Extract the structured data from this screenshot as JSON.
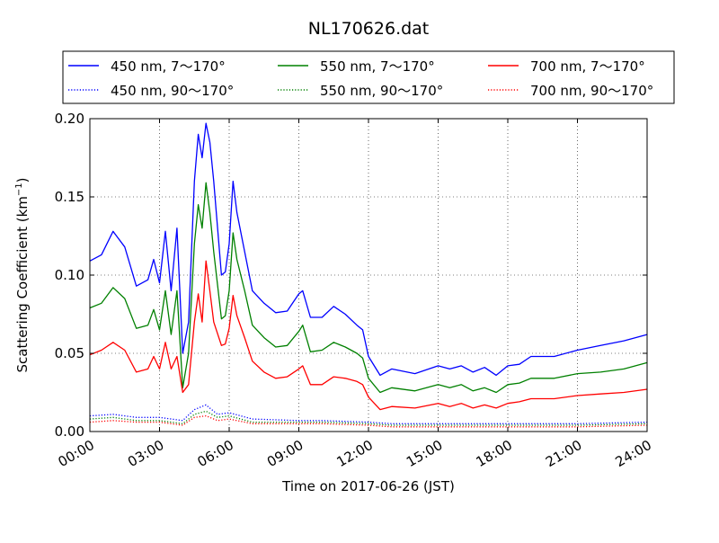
{
  "chart_data": {
    "type": "line",
    "title": "NL170626.dat",
    "xlabel": "Time on 2017-06-26 (JST)",
    "ylabel": "Scattering Coefficient (km",
    "ylabel_sup": "−1",
    "ylabel_close": ")",
    "xlim": [
      "00:00",
      "24:00"
    ],
    "ylim": [
      0,
      0.2
    ],
    "grid": true,
    "legend_position": "top",
    "x_ticks": [
      "00:00",
      "03:00",
      "06:00",
      "09:00",
      "12:00",
      "15:00",
      "18:00",
      "21:00",
      "24:00"
    ],
    "y_ticks": [
      "0.00",
      "0.05",
      "0.10",
      "0.15",
      "0.20"
    ],
    "series": [
      {
        "name": "450 nm, 7～170°",
        "color": "#0000ff",
        "style": "solid",
        "points": [
          [
            "00:00",
            0.109
          ],
          [
            "00:30",
            0.113
          ],
          [
            "01:00",
            0.128
          ],
          [
            "01:30",
            0.118
          ],
          [
            "02:00",
            0.093
          ],
          [
            "02:30",
            0.097
          ],
          [
            "02:45",
            0.11
          ],
          [
            "03:00",
            0.095
          ],
          [
            "03:15",
            0.128
          ],
          [
            "03:30",
            0.09
          ],
          [
            "03:45",
            0.13
          ],
          [
            "04:00",
            0.05
          ],
          [
            "04:15",
            0.07
          ],
          [
            "04:30",
            0.16
          ],
          [
            "04:40",
            0.19
          ],
          [
            "04:50",
            0.175
          ],
          [
            "05:00",
            0.197
          ],
          [
            "05:10",
            0.185
          ],
          [
            "05:20",
            0.16
          ],
          [
            "05:40",
            0.1
          ],
          [
            "05:50",
            0.102
          ],
          [
            "06:00",
            0.12
          ],
          [
            "06:10",
            0.16
          ],
          [
            "06:20",
            0.14
          ],
          [
            "06:40",
            0.115
          ],
          [
            "07:00",
            0.09
          ],
          [
            "07:30",
            0.082
          ],
          [
            "08:00",
            0.076
          ],
          [
            "08:30",
            0.077
          ],
          [
            "09:00",
            0.088
          ],
          [
            "09:10",
            0.09
          ],
          [
            "09:30",
            0.073
          ],
          [
            "10:00",
            0.073
          ],
          [
            "10:30",
            0.08
          ],
          [
            "11:00",
            0.075
          ],
          [
            "11:30",
            0.068
          ],
          [
            "11:45",
            0.065
          ],
          [
            "12:00",
            0.048
          ],
          [
            "12:30",
            0.036
          ],
          [
            "13:00",
            0.04
          ],
          [
            "14:00",
            0.037
          ],
          [
            "15:00",
            0.042
          ],
          [
            "15:30",
            0.04
          ],
          [
            "16:00",
            0.042
          ],
          [
            "16:30",
            0.038
          ],
          [
            "17:00",
            0.041
          ],
          [
            "17:30",
            0.036
          ],
          [
            "18:00",
            0.042
          ],
          [
            "18:30",
            0.043
          ],
          [
            "19:00",
            0.048
          ],
          [
            "20:00",
            0.048
          ],
          [
            "21:00",
            0.052
          ],
          [
            "22:00",
            0.055
          ],
          [
            "23:00",
            0.058
          ],
          [
            "24:00",
            0.062
          ]
        ]
      },
      {
        "name": "550 nm, 7～170°",
        "color": "#008000",
        "style": "solid",
        "points": [
          [
            "00:00",
            0.079
          ],
          [
            "00:30",
            0.082
          ],
          [
            "01:00",
            0.092
          ],
          [
            "01:30",
            0.085
          ],
          [
            "02:00",
            0.066
          ],
          [
            "02:30",
            0.068
          ],
          [
            "02:45",
            0.078
          ],
          [
            "03:00",
            0.065
          ],
          [
            "03:15",
            0.09
          ],
          [
            "03:30",
            0.062
          ],
          [
            "03:45",
            0.09
          ],
          [
            "04:00",
            0.028
          ],
          [
            "04:15",
            0.05
          ],
          [
            "04:30",
            0.12
          ],
          [
            "04:40",
            0.145
          ],
          [
            "04:50",
            0.13
          ],
          [
            "05:00",
            0.159
          ],
          [
            "05:10",
            0.14
          ],
          [
            "05:20",
            0.115
          ],
          [
            "05:40",
            0.072
          ],
          [
            "05:50",
            0.074
          ],
          [
            "06:00",
            0.09
          ],
          [
            "06:10",
            0.127
          ],
          [
            "06:20",
            0.11
          ],
          [
            "06:40",
            0.09
          ],
          [
            "07:00",
            0.068
          ],
          [
            "07:30",
            0.06
          ],
          [
            "08:00",
            0.054
          ],
          [
            "08:30",
            0.055
          ],
          [
            "09:00",
            0.064
          ],
          [
            "09:10",
            0.068
          ],
          [
            "09:30",
            0.051
          ],
          [
            "10:00",
            0.052
          ],
          [
            "10:30",
            0.057
          ],
          [
            "11:00",
            0.054
          ],
          [
            "11:30",
            0.05
          ],
          [
            "11:45",
            0.047
          ],
          [
            "12:00",
            0.034
          ],
          [
            "12:30",
            0.025
          ],
          [
            "13:00",
            0.028
          ],
          [
            "14:00",
            0.026
          ],
          [
            "15:00",
            0.03
          ],
          [
            "15:30",
            0.028
          ],
          [
            "16:00",
            0.03
          ],
          [
            "16:30",
            0.026
          ],
          [
            "17:00",
            0.028
          ],
          [
            "17:30",
            0.025
          ],
          [
            "18:00",
            0.03
          ],
          [
            "18:30",
            0.031
          ],
          [
            "19:00",
            0.034
          ],
          [
            "20:00",
            0.034
          ],
          [
            "21:00",
            0.037
          ],
          [
            "22:00",
            0.038
          ],
          [
            "23:00",
            0.04
          ],
          [
            "24:00",
            0.044
          ]
        ]
      },
      {
        "name": "700 nm, 7～170°",
        "color": "#ff0000",
        "style": "solid",
        "points": [
          [
            "00:00",
            0.049
          ],
          [
            "00:30",
            0.052
          ],
          [
            "01:00",
            0.057
          ],
          [
            "01:30",
            0.052
          ],
          [
            "02:00",
            0.038
          ],
          [
            "02:30",
            0.04
          ],
          [
            "02:45",
            0.048
          ],
          [
            "03:00",
            0.04
          ],
          [
            "03:15",
            0.057
          ],
          [
            "03:30",
            0.04
          ],
          [
            "03:45",
            0.048
          ],
          [
            "04:00",
            0.025
          ],
          [
            "04:15",
            0.03
          ],
          [
            "04:30",
            0.07
          ],
          [
            "04:40",
            0.088
          ],
          [
            "04:50",
            0.07
          ],
          [
            "05:00",
            0.109
          ],
          [
            "05:10",
            0.09
          ],
          [
            "05:20",
            0.07
          ],
          [
            "05:40",
            0.055
          ],
          [
            "05:50",
            0.056
          ],
          [
            "06:00",
            0.066
          ],
          [
            "06:10",
            0.087
          ],
          [
            "06:20",
            0.074
          ],
          [
            "06:40",
            0.06
          ],
          [
            "07:00",
            0.045
          ],
          [
            "07:30",
            0.038
          ],
          [
            "08:00",
            0.034
          ],
          [
            "08:30",
            0.035
          ],
          [
            "09:00",
            0.04
          ],
          [
            "09:10",
            0.042
          ],
          [
            "09:30",
            0.03
          ],
          [
            "10:00",
            0.03
          ],
          [
            "10:30",
            0.035
          ],
          [
            "11:00",
            0.034
          ],
          [
            "11:30",
            0.032
          ],
          [
            "11:45",
            0.03
          ],
          [
            "12:00",
            0.022
          ],
          [
            "12:30",
            0.014
          ],
          [
            "13:00",
            0.016
          ],
          [
            "14:00",
            0.015
          ],
          [
            "15:00",
            0.018
          ],
          [
            "15:30",
            0.016
          ],
          [
            "16:00",
            0.018
          ],
          [
            "16:30",
            0.015
          ],
          [
            "17:00",
            0.017
          ],
          [
            "17:30",
            0.015
          ],
          [
            "18:00",
            0.018
          ],
          [
            "18:30",
            0.019
          ],
          [
            "19:00",
            0.021
          ],
          [
            "20:00",
            0.021
          ],
          [
            "21:00",
            0.023
          ],
          [
            "22:00",
            0.024
          ],
          [
            "23:00",
            0.025
          ],
          [
            "24:00",
            0.027
          ]
        ]
      },
      {
        "name": "450 nm, 90～170°",
        "color": "#0000ff",
        "style": "dotted",
        "points": [
          [
            "00:00",
            0.01
          ],
          [
            "01:00",
            0.011
          ],
          [
            "02:00",
            0.009
          ],
          [
            "03:00",
            0.009
          ],
          [
            "04:00",
            0.007
          ],
          [
            "04:30",
            0.014
          ],
          [
            "05:00",
            0.017
          ],
          [
            "05:30",
            0.011
          ],
          [
            "06:00",
            0.012
          ],
          [
            "07:00",
            0.008
          ],
          [
            "09:00",
            0.007
          ],
          [
            "10:00",
            0.007
          ],
          [
            "12:00",
            0.006
          ],
          [
            "13:00",
            0.005
          ],
          [
            "15:00",
            0.005
          ],
          [
            "18:00",
            0.005
          ],
          [
            "21:00",
            0.005
          ],
          [
            "24:00",
            0.006
          ]
        ]
      },
      {
        "name": "550 nm, 90～170°",
        "color": "#008000",
        "style": "dotted",
        "points": [
          [
            "00:00",
            0.008
          ],
          [
            "01:00",
            0.009
          ],
          [
            "02:00",
            0.007
          ],
          [
            "03:00",
            0.007
          ],
          [
            "04:00",
            0.005
          ],
          [
            "04:30",
            0.011
          ],
          [
            "05:00",
            0.013
          ],
          [
            "05:30",
            0.009
          ],
          [
            "06:00",
            0.01
          ],
          [
            "07:00",
            0.006
          ],
          [
            "09:00",
            0.006
          ],
          [
            "10:00",
            0.006
          ],
          [
            "12:00",
            0.005
          ],
          [
            "13:00",
            0.004
          ],
          [
            "15:00",
            0.004
          ],
          [
            "18:00",
            0.004
          ],
          [
            "21:00",
            0.004
          ],
          [
            "24:00",
            0.005
          ]
        ]
      },
      {
        "name": "700 nm, 90～170°",
        "color": "#ff0000",
        "style": "dotted",
        "points": [
          [
            "00:00",
            0.006
          ],
          [
            "01:00",
            0.007
          ],
          [
            "02:00",
            0.006
          ],
          [
            "03:00",
            0.006
          ],
          [
            "04:00",
            0.004
          ],
          [
            "04:30",
            0.009
          ],
          [
            "05:00",
            0.01
          ],
          [
            "05:30",
            0.007
          ],
          [
            "06:00",
            0.008
          ],
          [
            "07:00",
            0.005
          ],
          [
            "09:00",
            0.005
          ],
          [
            "10:00",
            0.005
          ],
          [
            "12:00",
            0.004
          ],
          [
            "13:00",
            0.003
          ],
          [
            "15:00",
            0.003
          ],
          [
            "18:00",
            0.003
          ],
          [
            "21:00",
            0.003
          ],
          [
            "24:00",
            0.004
          ]
        ]
      }
    ]
  }
}
